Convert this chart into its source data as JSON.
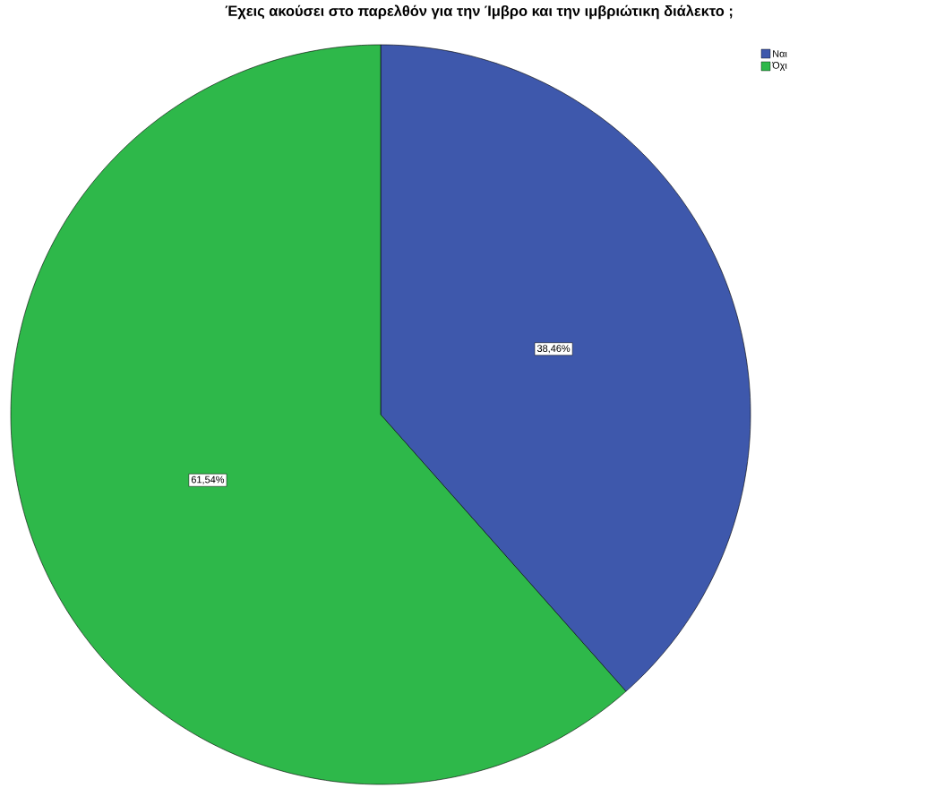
{
  "chart_data": {
    "type": "pie",
    "title": "Έχεις ακούσει στο παρελθόν για την Ίμβρο και την ιμβριώτικη διάλεκτο ;",
    "categories": [
      "Ναι",
      "Όχι"
    ],
    "values": [
      38.46,
      61.54
    ],
    "colors": [
      "#3e58ac",
      "#2eb84a"
    ],
    "value_labels": [
      "38,46%",
      "61,54%"
    ],
    "legend": "top right"
  }
}
